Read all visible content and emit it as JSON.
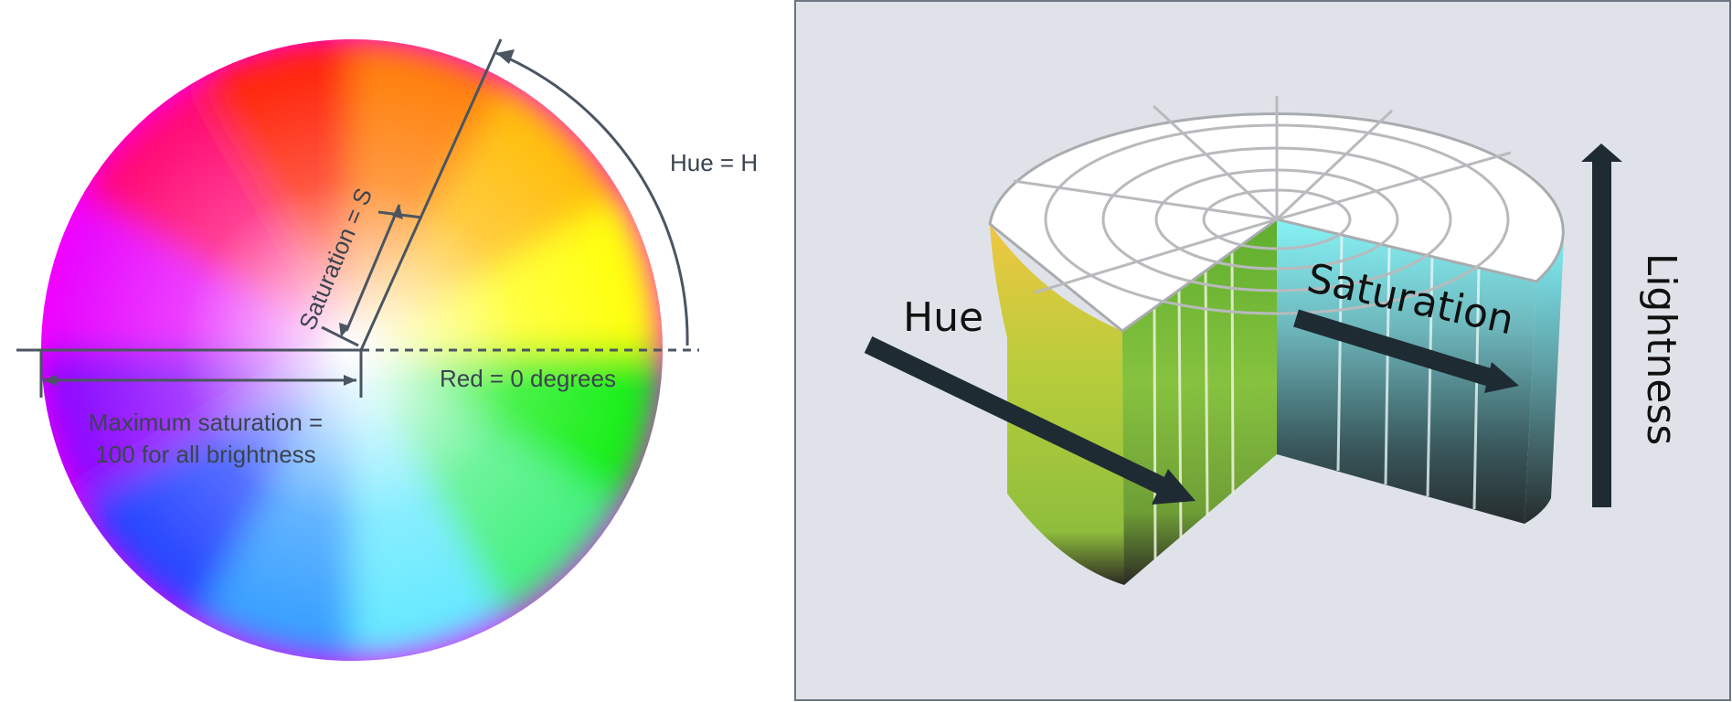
{
  "wheel": {
    "hue_label": "Hue = H",
    "saturation_label": "Saturation = S",
    "red_label": "Red = 0 degrees",
    "max_saturation_label_line1": "Maximum saturation =",
    "max_saturation_label_line2": "100 for all brightness",
    "line_color": "#4a5561"
  },
  "cylinder": {
    "panel_background": "#dfe3e9",
    "hue_label": "Hue",
    "saturation_label": "Saturation",
    "lightness_label": "Lightness",
    "arrow_color": "#1f2b33"
  }
}
